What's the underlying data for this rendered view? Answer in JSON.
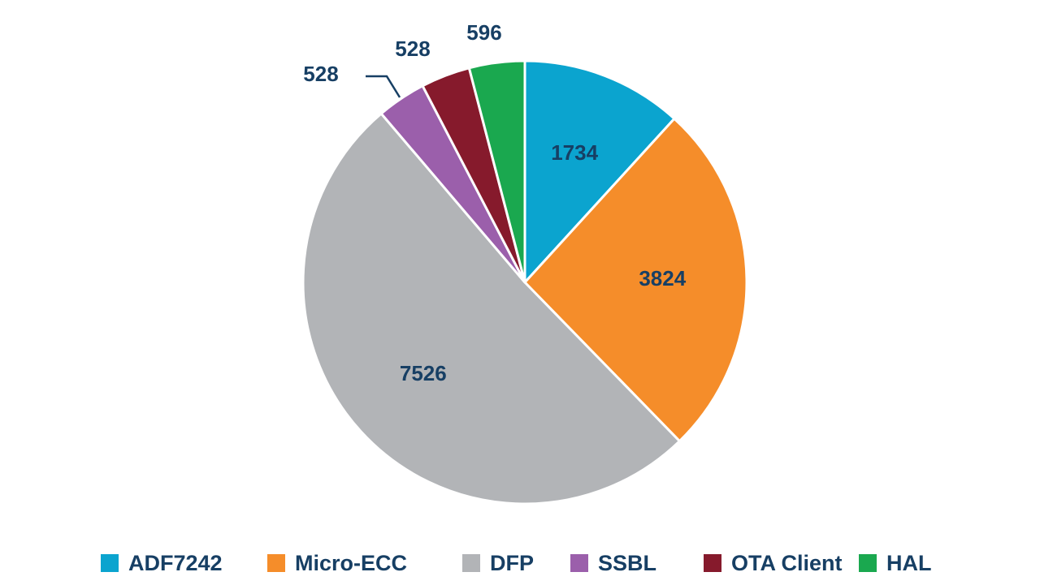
{
  "chart_data": {
    "type": "pie",
    "title": "",
    "start_angle_deg": 0,
    "direction": "clockwise",
    "slices": [
      {
        "label": "ADF7242",
        "value": 1734,
        "color": "#0ba4cf"
      },
      {
        "label": "Micro-ECC",
        "value": 3824,
        "color": "#f58d2a"
      },
      {
        "label": "DFP",
        "value": 7526,
        "color": "#b2b4b7"
      },
      {
        "label": "SSBL",
        "value": 528,
        "color": "#9b5fab"
      },
      {
        "label": "OTA Client",
        "value": 528,
        "color": "#861a2c"
      },
      {
        "label": "HAL",
        "value": 596,
        "color": "#1aa84f"
      }
    ],
    "data_labels": [
      "1734",
      "3824",
      "7526",
      "528",
      "528",
      "596"
    ],
    "legend_position": "bottom"
  }
}
